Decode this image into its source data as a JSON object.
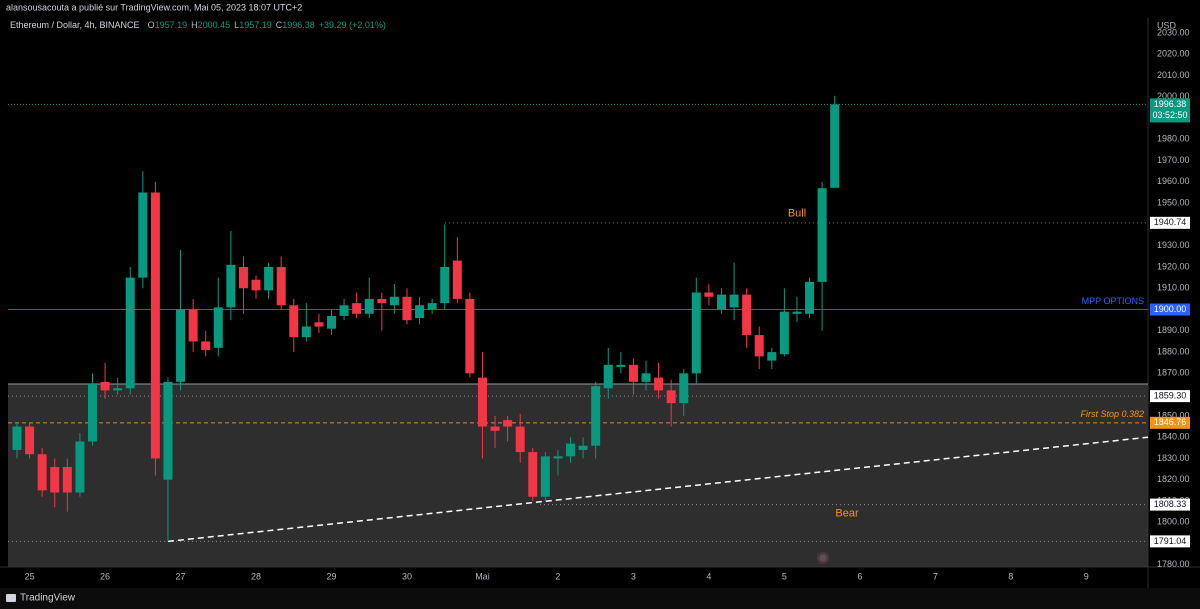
{
  "header": {
    "publisher": "alansousacouta a publié sur TradingView.com, Mai 05, 2023 18:07 UTC+2",
    "brand": "TradingView"
  },
  "chart_data": {
    "type": "candlestick",
    "legend": {
      "symbol": "Ethereum / Dollar, 4h, BINANCE",
      "values": [
        {
          "key": "O",
          "value": "1957.19"
        },
        {
          "key": "H",
          "value": "2000.45"
        },
        {
          "key": "L",
          "value": "1957.19"
        },
        {
          "key": "C",
          "value": "1996.38"
        }
      ],
      "change": "+39.29 (+2.01%)"
    },
    "currency": "USD",
    "up_color": "#089981",
    "down_color": "#f23645",
    "categories": [
      null,
      "25",
      null,
      null,
      null,
      null,
      null,
      "26",
      null,
      null,
      null,
      null,
      null,
      "27",
      null,
      null,
      null,
      null,
      null,
      "28",
      null,
      null,
      null,
      null,
      null,
      "29",
      null,
      null,
      null,
      null,
      null,
      "30",
      null,
      null,
      null,
      null,
      null,
      "Mai",
      null,
      null,
      null,
      null,
      null,
      "2",
      null,
      null,
      null,
      null,
      null,
      "3",
      null,
      null,
      null,
      null,
      null,
      "4",
      null,
      null,
      null,
      null,
      null,
      "5",
      null,
      null,
      null,
      null,
      null,
      "6",
      null,
      null,
      null,
      null,
      null,
      "7",
      null,
      null,
      null,
      null,
      null,
      "8",
      null,
      null,
      null,
      null,
      null,
      "9",
      null,
      null,
      null,
      null
    ],
    "open": [
      1834,
      1845,
      1832,
      1826,
      1826,
      1814,
      1838,
      1866,
      1862,
      1863,
      1915,
      1955,
      1820,
      1866,
      1900,
      1885,
      1882,
      1901,
      1920,
      1914,
      1909,
      1920,
      1902,
      1887,
      1894,
      1891,
      1897,
      1903,
      1898,
      1905,
      1902,
      1906,
      1896,
      1900,
      1903,
      1923,
      1905,
      1868,
      1845,
      1848,
      1845,
      1833,
      1812,
      1830,
      1831,
      1834,
      1836,
      1863,
      1873,
      1874,
      1866,
      1868,
      1862,
      1856,
      1870,
      1908,
      1900,
      1901,
      1907,
      1888,
      1876,
      1879,
      1898,
      1898,
      1913,
      1957.19,
      null,
      null,
      null,
      null,
      null,
      null,
      null,
      null,
      null,
      null,
      null,
      null,
      null,
      null,
      null,
      null,
      null,
      null,
      null,
      null,
      null,
      null,
      null,
      null
    ],
    "high": [
      1847,
      1847,
      1835,
      1830,
      1830,
      1842,
      1870,
      1875,
      1868,
      1920,
      1965,
      1960,
      1868,
      1928,
      1905,
      1890,
      1915,
      1937,
      1925,
      1916,
      1922,
      1925,
      1905,
      1903,
      1898,
      1900,
      1905,
      1908,
      1915,
      1908,
      1912,
      1910,
      1906,
      1905,
      1940,
      1934,
      1908,
      1880,
      1850,
      1850,
      1851,
      1835,
      1833,
      1834,
      1840,
      1840,
      1866,
      1882,
      1880,
      1877,
      1876,
      1875,
      1867,
      1872,
      1915,
      1912,
      1910,
      1922,
      1910,
      1892,
      1882,
      1910,
      1906,
      1915,
      1960,
      2000.45,
      null,
      null,
      null,
      null,
      null,
      null,
      null,
      null,
      null,
      null,
      null,
      null,
      null,
      null,
      null,
      null,
      null,
      null,
      null,
      null,
      null,
      null,
      null,
      null
    ],
    "low": [
      1830,
      1830,
      1812,
      1807,
      1805,
      1812,
      1836,
      1858,
      1860,
      1860,
      1910,
      1822,
      1791.04,
      1862,
      1880,
      1878,
      1878,
      1895,
      1898,
      1905,
      1905,
      1900,
      1880,
      1885,
      1889,
      1888,
      1895,
      1896,
      1896,
      1890,
      1898,
      1893,
      1893,
      1898,
      1900,
      1903,
      1868,
      1830,
      1835,
      1838,
      1828,
      1810,
      1810,
      1822,
      1828,
      1830,
      1830,
      1858,
      1870,
      1860,
      1862,
      1858,
      1845,
      1850,
      1865,
      1902,
      1898,
      1895,
      1882,
      1872,
      1872,
      1878,
      1894,
      1896,
      1890,
      1957.19,
      null,
      null,
      null,
      null,
      null,
      null,
      null,
      null,
      null,
      null,
      null,
      null,
      null,
      null,
      null,
      null,
      null,
      null,
      null,
      null,
      null,
      null,
      null,
      null
    ],
    "close": [
      1845,
      1832,
      1815,
      1814,
      1814,
      1838,
      1865,
      1862,
      1863,
      1915,
      1955,
      1830,
      1866,
      1900,
      1885,
      1881,
      1901,
      1921,
      1910,
      1909,
      1920,
      1902,
      1887,
      1892,
      1892,
      1897,
      1902,
      1898,
      1905,
      1903,
      1906,
      1895,
      1902,
      1903,
      1920,
      1905,
      1870,
      1845,
      1843,
      1845,
      1833,
      1812,
      1831,
      1831,
      1837,
      1836,
      1864,
      1874,
      1874,
      1866,
      1870,
      1862,
      1856,
      1870,
      1908,
      1906,
      1907,
      1907,
      1888,
      1878,
      1880,
      1899,
      1899,
      1913,
      1957,
      1996.38,
      null,
      null,
      null,
      null,
      null,
      null,
      null,
      null,
      null,
      null,
      null,
      null,
      null,
      null,
      null,
      null,
      null,
      null,
      null,
      null,
      null,
      null,
      null,
      null
    ],
    "ylim": [
      1779,
      2037
    ],
    "yticks": [
      {
        "value": 1780,
        "label": "1780.00"
      },
      {
        "value": 1790,
        "label": "1790.00"
      },
      {
        "value": 1800,
        "label": "1800.00"
      },
      {
        "value": 1810,
        "label": "1810.00"
      },
      {
        "value": 1820,
        "label": "1820.00"
      },
      {
        "value": 1830,
        "label": "1830.00"
      },
      {
        "value": 1840,
        "label": "1840.00"
      },
      {
        "value": 1850,
        "label": "1850.00"
      },
      {
        "value": 1860,
        "label": "1860.00"
      },
      {
        "value": 1870,
        "label": "1870.00"
      },
      {
        "value": 1880,
        "label": "1880.00"
      },
      {
        "value": 1890,
        "label": "1890.00"
      },
      {
        "value": 1900,
        "label": "1900.00"
      },
      {
        "value": 1910,
        "label": "1910.00"
      },
      {
        "value": 1920,
        "label": "1920.00"
      },
      {
        "value": 1930,
        "label": "1930.00"
      },
      {
        "value": 1940,
        "label": "1940.00"
      },
      {
        "value": 1950,
        "label": "1950.00"
      },
      {
        "value": 1960,
        "label": "1960.00"
      },
      {
        "value": 1970,
        "label": "1970.00"
      },
      {
        "value": 1980,
        "label": "1980.00"
      },
      {
        "value": 1990,
        "label": "1990.00"
      },
      {
        "value": 2000,
        "label": "2000.00"
      },
      {
        "value": 2010,
        "label": "2010.00"
      },
      {
        "value": 2020,
        "label": "2020.00"
      },
      {
        "value": 2030,
        "label": "2030.00"
      }
    ],
    "last_price": {
      "value": 1996.38,
      "label": "1996.38",
      "countdown": "03:52:50",
      "color": "#089981"
    },
    "levels": [
      {
        "value": 1940.74,
        "label": "1940.74",
        "color": "#ffffff"
      },
      {
        "value": 1900,
        "label": "1900.00",
        "color": "#2962ff",
        "name": "MPP OPTIONS"
      },
      {
        "value": 1859.3,
        "label": "1859.30",
        "color": "#ffffff"
      },
      {
        "value": 1846.76,
        "label": "1846.76",
        "color": "#f7931a",
        "name": "First Stop 0.382"
      },
      {
        "value": 1808.33,
        "label": "1808.33",
        "color": "#ffffff"
      },
      {
        "value": 1791.04,
        "label": "1791.04",
        "color": "#ffffff"
      }
    ],
    "zone_top": 1865,
    "trendline": {
      "start": 1791.04,
      "end": 1840
    },
    "annotations": [
      {
        "text": "Bull",
        "value": 1945
      },
      {
        "text": "Bear",
        "value": 1804
      }
    ]
  }
}
